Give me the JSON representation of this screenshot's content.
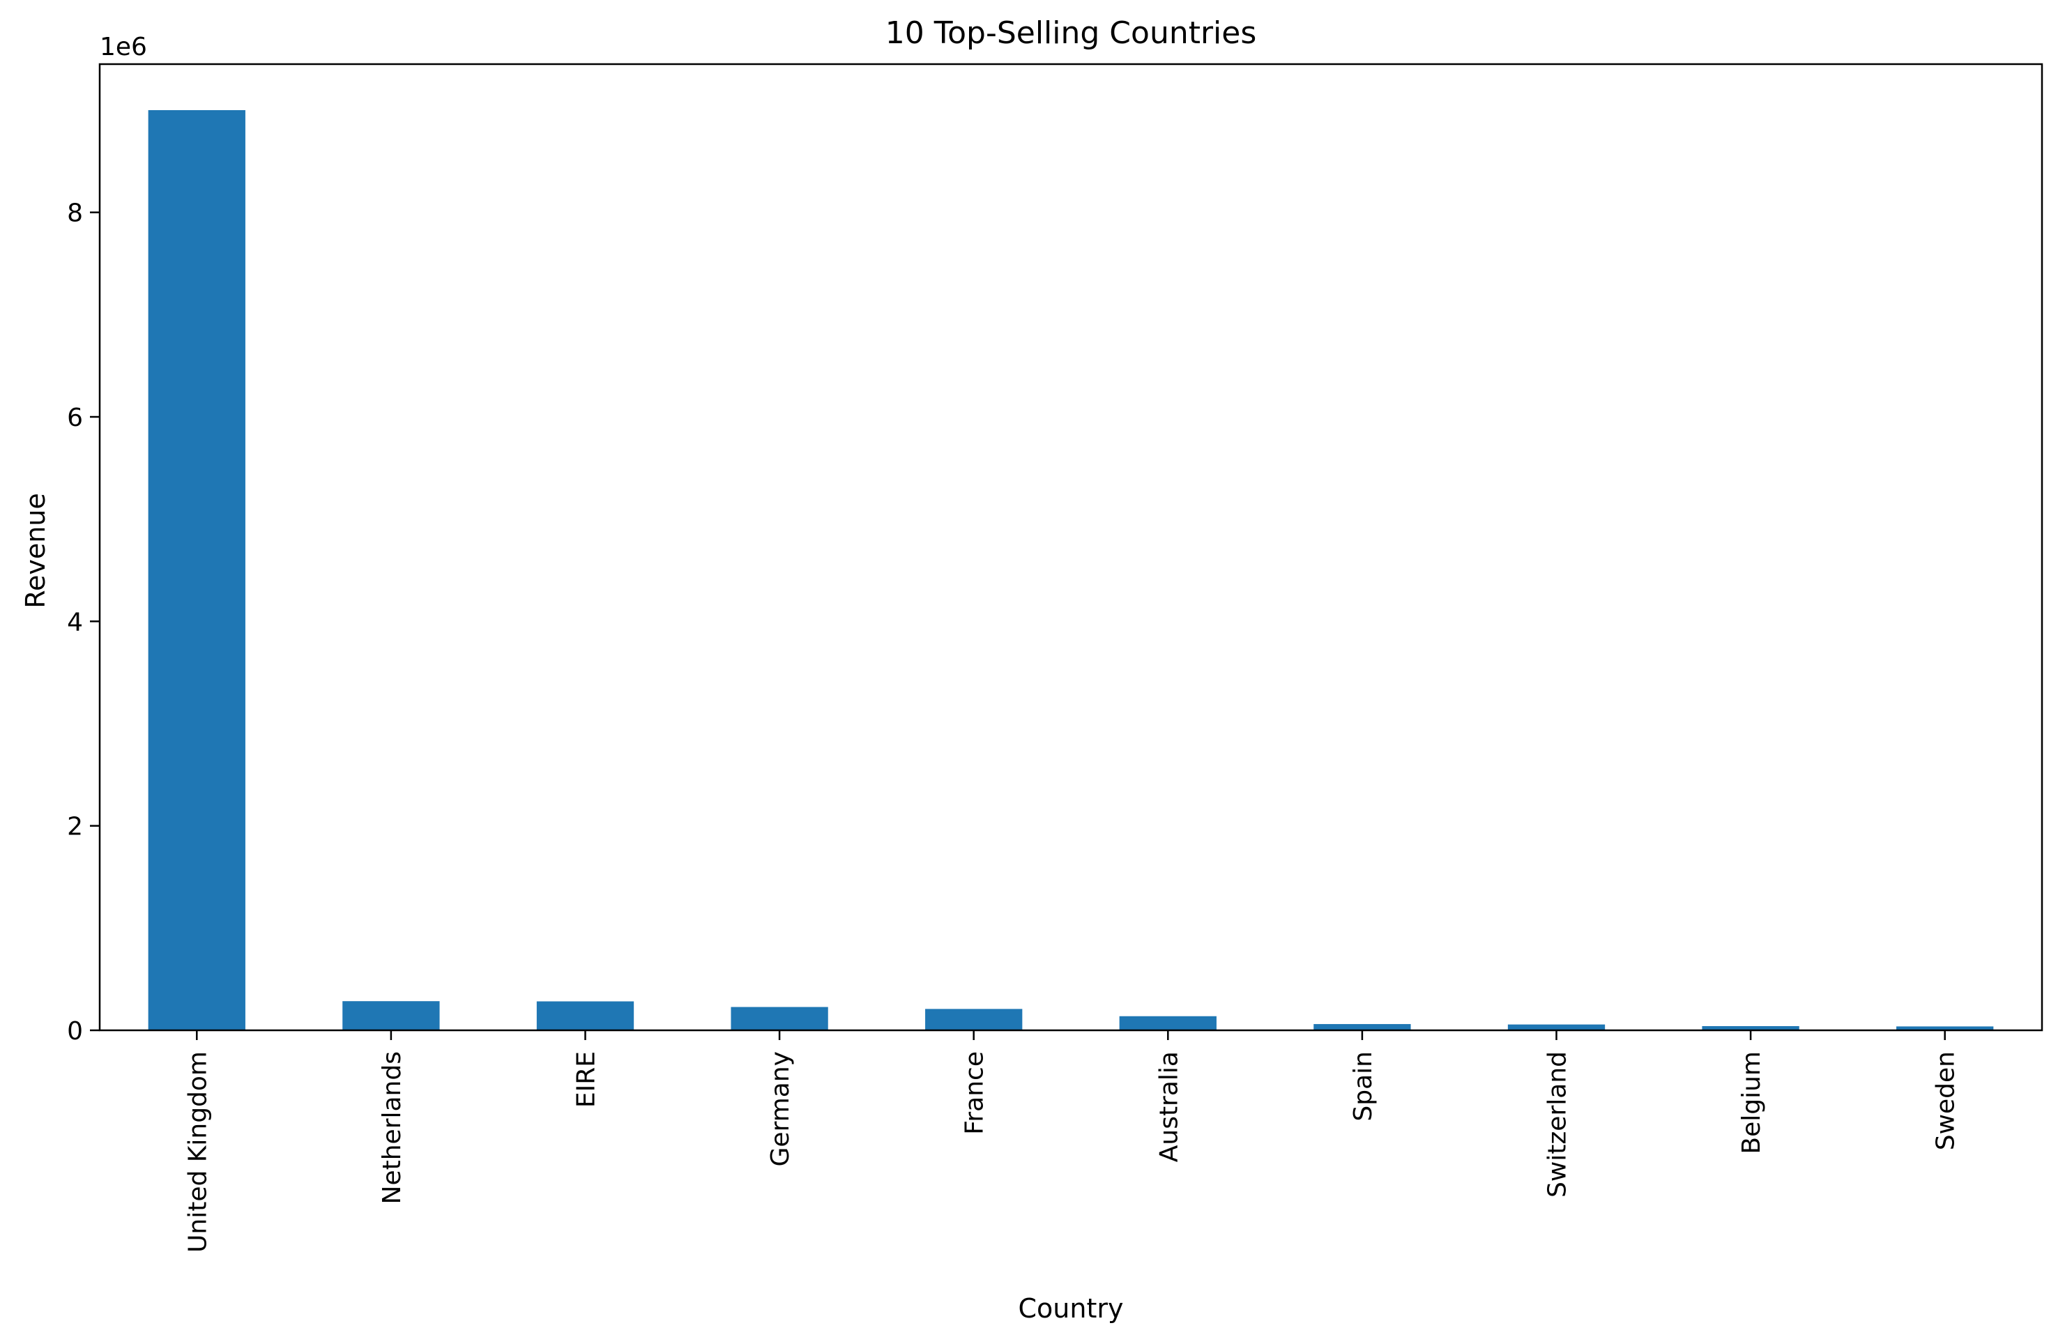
{
  "chart_data": {
    "type": "bar",
    "title": "10 Top-Selling Countries",
    "xlabel": "Country",
    "ylabel": "Revenue",
    "y_offset_label": "1e6",
    "y_scale": 1000000,
    "ylim": [
      0,
      9450000
    ],
    "yticks": [
      0,
      2000000,
      4000000,
      6000000,
      8000000
    ],
    "ytick_labels": [
      "0",
      "2",
      "4",
      "6",
      "8"
    ],
    "categories": [
      "United Kingdom",
      "Netherlands",
      "EIRE",
      "Germany",
      "France",
      "Australia",
      "Spain",
      "Switzerland",
      "Belgium",
      "Sweden"
    ],
    "values": [
      9000000,
      285000,
      283000,
      228000,
      209000,
      138000,
      61000,
      57000,
      41000,
      38000
    ],
    "bar_color": "#1f77b4",
    "grid": false,
    "legend": false
  }
}
